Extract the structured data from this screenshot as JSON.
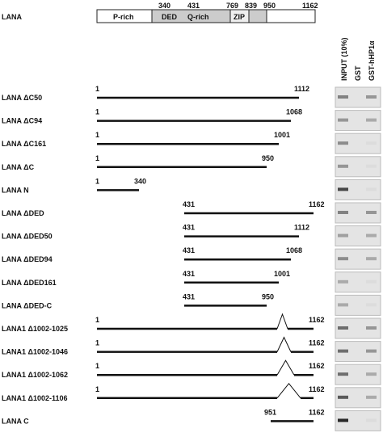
{
  "domain_map": {
    "title": "LANA",
    "domains": [
      "P-rich",
      "DED",
      "Q-rich",
      "ZIP"
    ],
    "positions": [
      "340",
      "431",
      "769",
      "839",
      "950",
      "1162"
    ]
  },
  "gel_headers": [
    "INPUT (10%)",
    "GST",
    "GST-hHP1α"
  ],
  "constructs": [
    {
      "name": "LANA ΔC50",
      "start": "1",
      "end": "1112"
    },
    {
      "name": "LANA ΔC94",
      "start": "1",
      "end": "1068"
    },
    {
      "name": "LANA ΔC161",
      "start": "1",
      "end": "1001"
    },
    {
      "name": "LANA ΔC",
      "start": "1",
      "end": "950"
    },
    {
      "name": "LANA N",
      "start": "1",
      "end": "340"
    },
    {
      "name": "LANA ΔDED",
      "start": "431",
      "end": "1162"
    },
    {
      "name": "LANA ΔDED50",
      "start": "431",
      "end": "1112"
    },
    {
      "name": "LANA ΔDED94",
      "start": "431",
      "end": "1068"
    },
    {
      "name": "LANA ΔDED161",
      "start": "431",
      "end": "1001"
    },
    {
      "name": "LANA ΔDED-C",
      "start": "431",
      "end": "950"
    },
    {
      "name": "LANA1 Δ1002-1025",
      "start": "1",
      "end": "1162"
    },
    {
      "name": "LANA1 Δ1002-1046",
      "start": "1",
      "end": "1162"
    },
    {
      "name": "LANA1 Δ1002-1062",
      "start": "1",
      "end": "1162"
    },
    {
      "name": "LANA1 Δ1002-1106",
      "start": "1",
      "end": "1162"
    },
    {
      "name": "LANA C",
      "start": "951",
      "end": "1162"
    }
  ]
}
